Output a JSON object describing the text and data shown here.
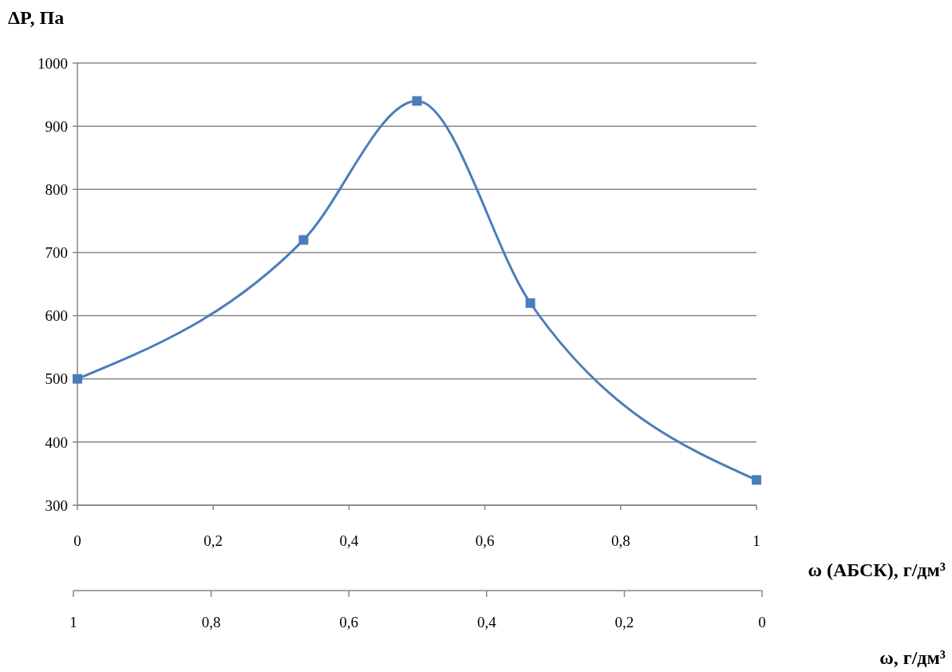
{
  "chart_data": {
    "type": "line",
    "ylabel": "ΔP, Па",
    "xlabel": "ω (АБСК), г/дм³",
    "x2label": "ω, г/дм³",
    "x": [
      0,
      0.333,
      0.5,
      0.667,
      1
    ],
    "series": [
      {
        "color": "#4a7ebb",
        "values": [
          500,
          720,
          940,
          620,
          340
        ]
      }
    ],
    "xlim": [
      0,
      1
    ],
    "xticks": [
      0,
      {
        "value": 0.2,
        "label": "0,2"
      },
      {
        "value": 0.4,
        "label": "0,4"
      },
      {
        "value": 0.6,
        "label": "0,6"
      },
      {
        "value": 0.8,
        "label": "0,8"
      },
      1
    ],
    "x2lim": [
      1,
      0
    ],
    "x2ticks": [
      1,
      {
        "value": 0.8,
        "label": "0,8"
      },
      {
        "value": 0.6,
        "label": "0,6"
      },
      {
        "value": 0.4,
        "label": "0,4"
      },
      {
        "value": 0.2,
        "label": "0,2"
      },
      0
    ],
    "ylim": [
      300,
      1000
    ],
    "yticks": [
      300,
      400,
      500,
      600,
      700,
      800,
      900,
      1000
    ],
    "grid": "y",
    "marker": "square",
    "line_style": "solid"
  }
}
